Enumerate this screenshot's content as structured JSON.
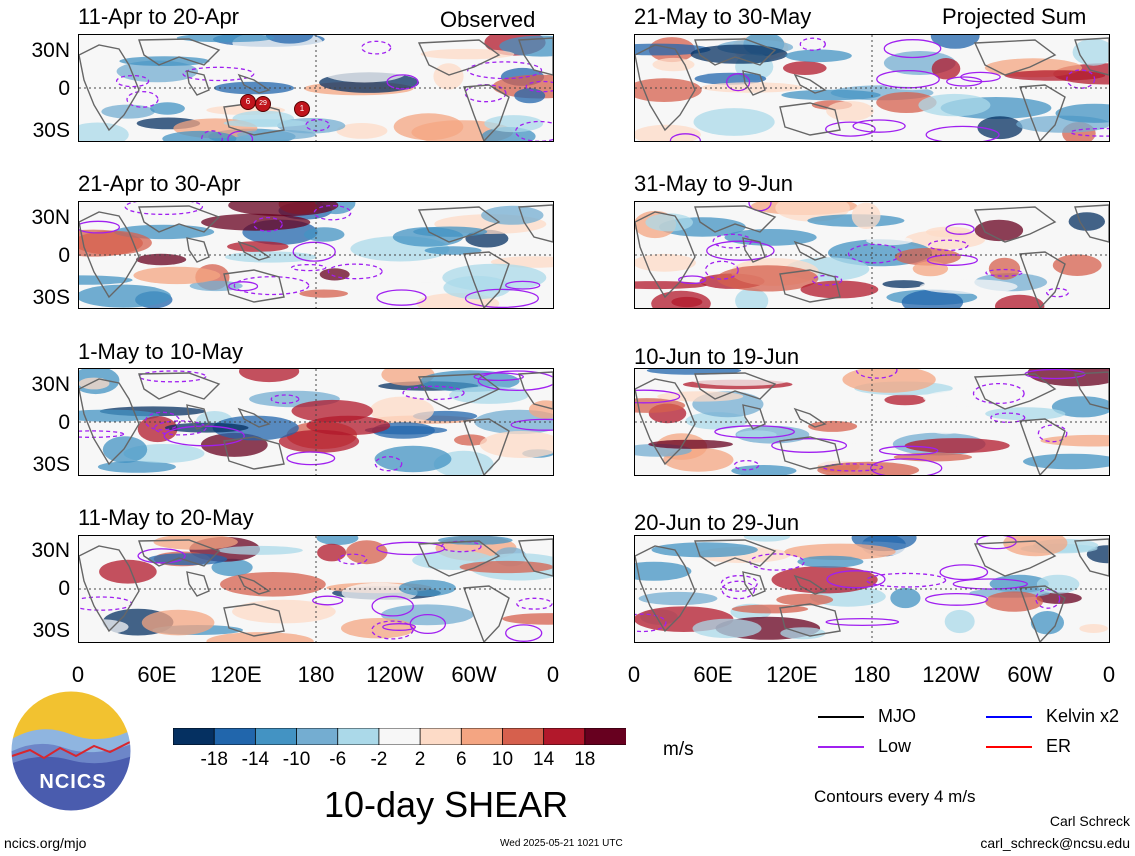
{
  "header": {
    "left_label": "Observed",
    "right_label": "Projected Sum"
  },
  "panels_left": [
    {
      "title": "11-Apr to 20-Apr"
    },
    {
      "title": "21-Apr to 30-Apr"
    },
    {
      "title": "1-May to 10-May"
    },
    {
      "title": "11-May to 20-May"
    }
  ],
  "panels_right": [
    {
      "title": "21-May to 30-May"
    },
    {
      "title": "31-May to 9-Jun"
    },
    {
      "title": "10-Jun to 19-Jun"
    },
    {
      "title": "20-Jun to 29-Jun"
    }
  ],
  "chart_data": {
    "type": "heatmap",
    "title": "10-day SHEAR",
    "variable": "10-day SHEAR",
    "units": "m/s",
    "y_ticks": [
      "30N",
      "0",
      "30S"
    ],
    "x_ticks": [
      "0",
      "60E",
      "120E",
      "180",
      "120W",
      "60W",
      "0"
    ],
    "colorbar": {
      "ticks": [
        "-18",
        "-14",
        "-10",
        "-6",
        "-2",
        "2",
        "6",
        "10",
        "14",
        "18"
      ],
      "colors": [
        "#053061",
        "#2166ac",
        "#4393c3",
        "#74add1",
        "#abd9e9",
        "#f7f7f7",
        "#fddbc7",
        "#f4a582",
        "#d6604d",
        "#b2182b",
        "#67001f"
      ]
    },
    "legend": [
      {
        "label": "MJO",
        "color": "#000000"
      },
      {
        "label": "Kelvin x2",
        "color": "#0000ff"
      },
      {
        "label": "Low",
        "color": "#a020f0"
      },
      {
        "label": "ER",
        "color": "#ff0000"
      }
    ],
    "contour_note": "Contours every 4 m/s",
    "storm_markers": [
      "6",
      "29",
      "1"
    ]
  },
  "footer": {
    "logo_text": "NCICS",
    "url": "ncics.org/mjo",
    "timestamp": "Wed 2025-05-21 1021 UTC",
    "author": "Carl Schreck",
    "email": "carl_schreck@ncsu.edu"
  }
}
